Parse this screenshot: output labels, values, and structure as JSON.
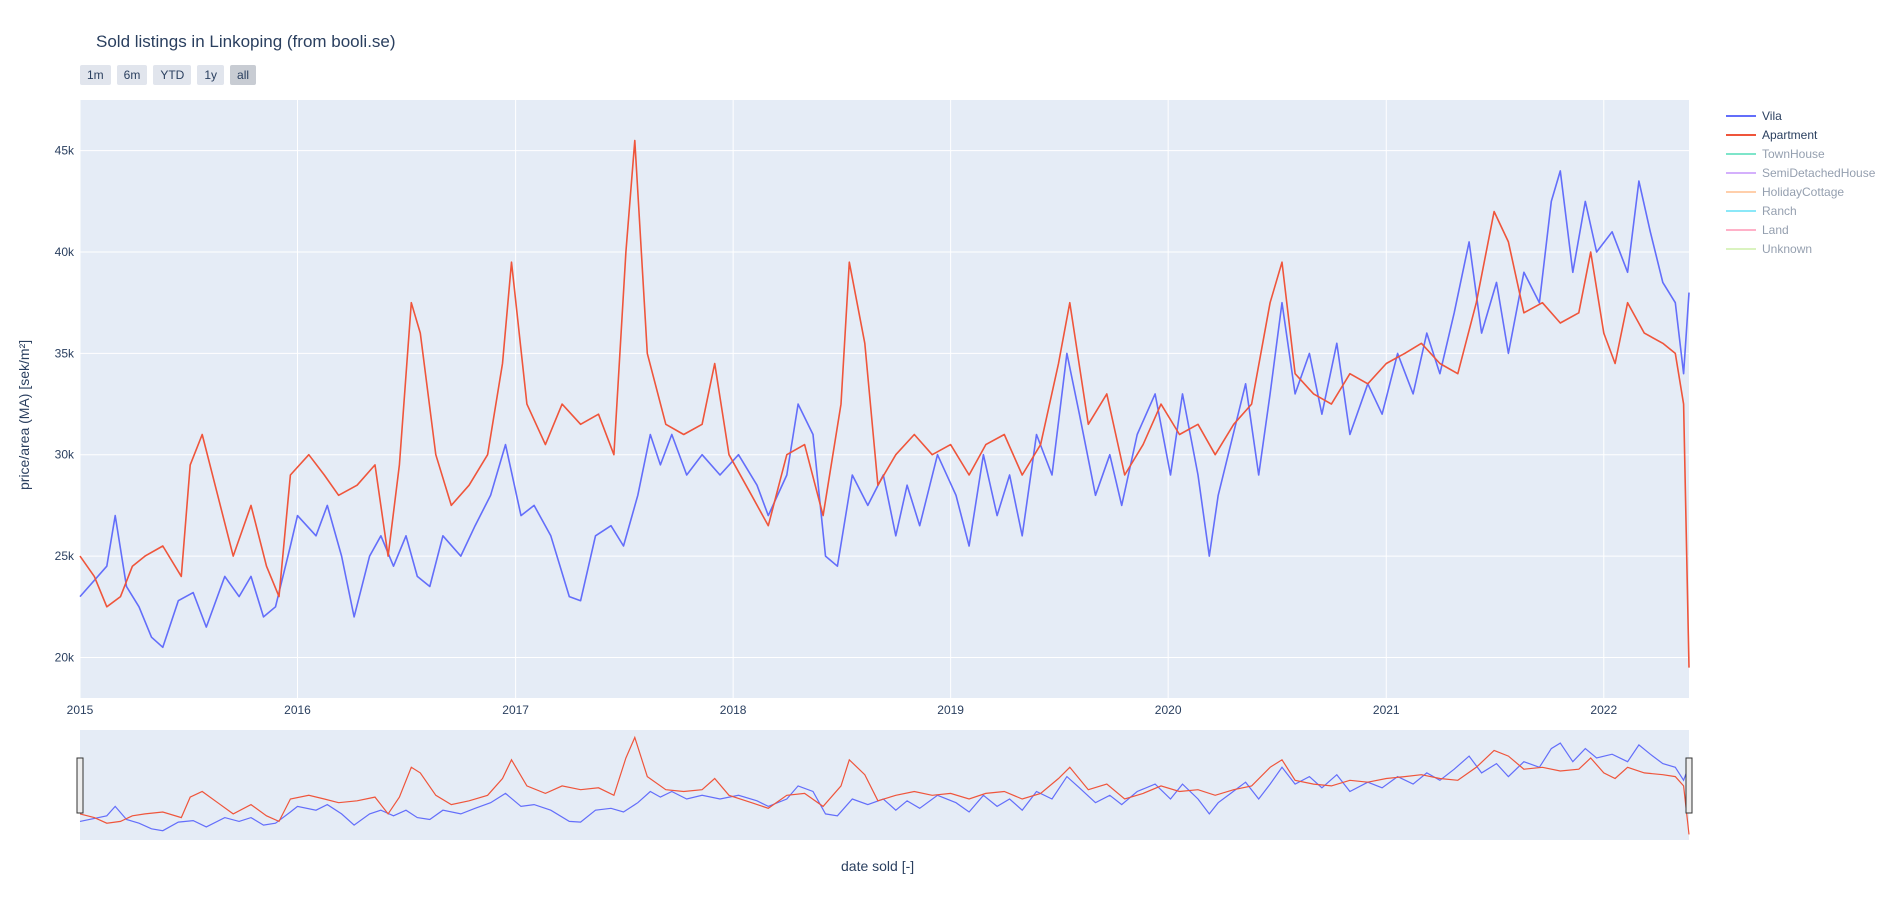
{
  "title": "Sold listings in Linkoping (from booli.se)",
  "range_selector": [
    {
      "label": "1m",
      "active": false
    },
    {
      "label": "6m",
      "active": false
    },
    {
      "label": "YTD",
      "active": false
    },
    {
      "label": "1y",
      "active": false
    },
    {
      "label": "all",
      "active": true
    }
  ],
  "colors": {
    "plot_bg": "#e5ecf6",
    "grid": "#ffffff",
    "text": "#2a3f5f"
  },
  "chart_data": {
    "type": "line",
    "title": "Sold listings in Linkoping (from booli.se)",
    "xlabel": "date sold [-]",
    "ylabel": "price/area (MA) [sek/m²]",
    "x_type": "date",
    "xlim": [
      "2015-01-01",
      "2022-05-24"
    ],
    "ylim": [
      18000,
      47500
    ],
    "x_ticks": [
      "2015",
      "2016",
      "2017",
      "2018",
      "2019",
      "2020",
      "2021",
      "2022"
    ],
    "y_ticks": [
      {
        "value": 20000,
        "label": "20k"
      },
      {
        "value": 25000,
        "label": "25k"
      },
      {
        "value": 30000,
        "label": "30k"
      },
      {
        "value": 35000,
        "label": "35k"
      },
      {
        "value": 40000,
        "label": "40k"
      },
      {
        "value": 45000,
        "label": "45k"
      }
    ],
    "grid": true,
    "legend_position": "right",
    "rangeslider": true,
    "series": [
      {
        "name": "Vila",
        "color": "#636efa",
        "visible": true,
        "points": [
          [
            "2015-01-01",
            23000
          ],
          [
            "2015-02-15",
            24500
          ],
          [
            "2015-03-01",
            27000
          ],
          [
            "2015-03-20",
            23500
          ],
          [
            "2015-04-10",
            22500
          ],
          [
            "2015-05-01",
            21000
          ],
          [
            "2015-05-20",
            20500
          ],
          [
            "2015-06-15",
            22800
          ],
          [
            "2015-07-10",
            23200
          ],
          [
            "2015-08-01",
            21500
          ],
          [
            "2015-09-01",
            24000
          ],
          [
            "2015-09-25",
            23000
          ],
          [
            "2015-10-15",
            24000
          ],
          [
            "2015-11-05",
            22000
          ],
          [
            "2015-11-25",
            22500
          ],
          [
            "2015-12-20",
            25500
          ],
          [
            "2016-01-01",
            27000
          ],
          [
            "2016-02-01",
            26000
          ],
          [
            "2016-02-20",
            27500
          ],
          [
            "2016-03-15",
            25000
          ],
          [
            "2016-04-05",
            22000
          ],
          [
            "2016-05-01",
            25000
          ],
          [
            "2016-05-20",
            26000
          ],
          [
            "2016-06-10",
            24500
          ],
          [
            "2016-07-01",
            26000
          ],
          [
            "2016-07-20",
            24000
          ],
          [
            "2016-08-10",
            23500
          ],
          [
            "2016-09-01",
            26000
          ],
          [
            "2016-10-01",
            25000
          ],
          [
            "2016-10-25",
            26500
          ],
          [
            "2016-11-20",
            28000
          ],
          [
            "2016-12-15",
            30500
          ],
          [
            "2017-01-10",
            27000
          ],
          [
            "2017-02-01",
            27500
          ],
          [
            "2017-03-01",
            26000
          ],
          [
            "2017-04-01",
            23000
          ],
          [
            "2017-04-20",
            22800
          ],
          [
            "2017-05-15",
            26000
          ],
          [
            "2017-06-10",
            26500
          ],
          [
            "2017-07-01",
            25500
          ],
          [
            "2017-07-25",
            28000
          ],
          [
            "2017-08-15",
            31000
          ],
          [
            "2017-09-01",
            29500
          ],
          [
            "2017-09-20",
            31000
          ],
          [
            "2017-10-15",
            29000
          ],
          [
            "2017-11-10",
            30000
          ],
          [
            "2017-12-10",
            29000
          ],
          [
            "2018-01-10",
            30000
          ],
          [
            "2018-02-10",
            28500
          ],
          [
            "2018-03-01",
            27000
          ],
          [
            "2018-04-01",
            29000
          ],
          [
            "2018-04-20",
            32500
          ],
          [
            "2018-05-15",
            31000
          ],
          [
            "2018-06-05",
            25000
          ],
          [
            "2018-06-25",
            24500
          ],
          [
            "2018-07-20",
            29000
          ],
          [
            "2018-08-15",
            27500
          ],
          [
            "2018-09-10",
            29000
          ],
          [
            "2018-10-01",
            26000
          ],
          [
            "2018-10-20",
            28500
          ],
          [
            "2018-11-10",
            26500
          ],
          [
            "2018-12-10",
            30000
          ],
          [
            "2019-01-10",
            28000
          ],
          [
            "2019-02-01",
            25500
          ],
          [
            "2019-02-25",
            30000
          ],
          [
            "2019-03-20",
            27000
          ],
          [
            "2019-04-10",
            29000
          ],
          [
            "2019-05-01",
            26000
          ],
          [
            "2019-05-25",
            31000
          ],
          [
            "2019-06-20",
            29000
          ],
          [
            "2019-07-15",
            35000
          ],
          [
            "2019-08-05",
            32000
          ],
          [
            "2019-09-01",
            28000
          ],
          [
            "2019-09-25",
            30000
          ],
          [
            "2019-10-15",
            27500
          ],
          [
            "2019-11-10",
            31000
          ],
          [
            "2019-12-10",
            33000
          ],
          [
            "2020-01-05",
            29000
          ],
          [
            "2020-01-25",
            33000
          ],
          [
            "2020-02-20",
            29000
          ],
          [
            "2020-03-10",
            25000
          ],
          [
            "2020-03-25",
            28000
          ],
          [
            "2020-04-15",
            30500
          ],
          [
            "2020-05-10",
            33500
          ],
          [
            "2020-06-01",
            29000
          ],
          [
            "2020-06-20",
            33000
          ],
          [
            "2020-07-10",
            37500
          ],
          [
            "2020-08-01",
            33000
          ],
          [
            "2020-08-25",
            35000
          ],
          [
            "2020-09-15",
            32000
          ],
          [
            "2020-10-10",
            35500
          ],
          [
            "2020-11-01",
            31000
          ],
          [
            "2020-12-01",
            33500
          ],
          [
            "2020-12-25",
            32000
          ],
          [
            "2021-01-20",
            35000
          ],
          [
            "2021-02-15",
            33000
          ],
          [
            "2021-03-10",
            36000
          ],
          [
            "2021-04-01",
            34000
          ],
          [
            "2021-04-25",
            37000
          ],
          [
            "2021-05-20",
            40500
          ],
          [
            "2021-06-10",
            36000
          ],
          [
            "2021-07-05",
            38500
          ],
          [
            "2021-07-25",
            35000
          ],
          [
            "2021-08-20",
            39000
          ],
          [
            "2021-09-15",
            37500
          ],
          [
            "2021-10-05",
            42500
          ],
          [
            "2021-10-20",
            44000
          ],
          [
            "2021-11-10",
            39000
          ],
          [
            "2021-12-01",
            42500
          ],
          [
            "2021-12-20",
            40000
          ],
          [
            "2022-01-15",
            41000
          ],
          [
            "2022-02-10",
            39000
          ],
          [
            "2022-03-01",
            43500
          ],
          [
            "2022-03-20",
            41000
          ],
          [
            "2022-04-10",
            38500
          ],
          [
            "2022-05-01",
            37500
          ],
          [
            "2022-05-15",
            34000
          ],
          [
            "2022-05-24",
            38000
          ]
        ]
      },
      {
        "name": "Apartment",
        "color": "#ef553b",
        "visible": true,
        "points": [
          [
            "2015-01-01",
            25000
          ],
          [
            "2015-01-25",
            24000
          ],
          [
            "2015-02-15",
            22500
          ],
          [
            "2015-03-10",
            23000
          ],
          [
            "2015-03-30",
            24500
          ],
          [
            "2015-04-20",
            25000
          ],
          [
            "2015-05-20",
            25500
          ],
          [
            "2015-06-20",
            24000
          ],
          [
            "2015-07-05",
            29500
          ],
          [
            "2015-07-25",
            31000
          ],
          [
            "2015-08-20",
            28000
          ],
          [
            "2015-09-15",
            25000
          ],
          [
            "2015-10-15",
            27500
          ],
          [
            "2015-11-10",
            24500
          ],
          [
            "2015-12-01",
            23000
          ],
          [
            "2015-12-20",
            29000
          ],
          [
            "2016-01-20",
            30000
          ],
          [
            "2016-02-15",
            29000
          ],
          [
            "2016-03-10",
            28000
          ],
          [
            "2016-04-10",
            28500
          ],
          [
            "2016-05-10",
            29500
          ],
          [
            "2016-06-01",
            25000
          ],
          [
            "2016-06-20",
            29500
          ],
          [
            "2016-07-10",
            37500
          ],
          [
            "2016-07-25",
            36000
          ],
          [
            "2016-08-20",
            30000
          ],
          [
            "2016-09-15",
            27500
          ],
          [
            "2016-10-15",
            28500
          ],
          [
            "2016-11-15",
            30000
          ],
          [
            "2016-12-10",
            34500
          ],
          [
            "2016-12-25",
            39500
          ],
          [
            "2017-01-20",
            32500
          ],
          [
            "2017-02-20",
            30500
          ],
          [
            "2017-03-20",
            32500
          ],
          [
            "2017-04-20",
            31500
          ],
          [
            "2017-05-20",
            32000
          ],
          [
            "2017-06-15",
            30000
          ],
          [
            "2017-07-05",
            40000
          ],
          [
            "2017-07-20",
            45500
          ],
          [
            "2017-08-10",
            35000
          ],
          [
            "2017-09-10",
            31500
          ],
          [
            "2017-10-10",
            31000
          ],
          [
            "2017-11-10",
            31500
          ],
          [
            "2017-12-01",
            34500
          ],
          [
            "2017-12-25",
            30000
          ],
          [
            "2018-02-01",
            28000
          ],
          [
            "2018-03-01",
            26500
          ],
          [
            "2018-04-01",
            30000
          ],
          [
            "2018-05-01",
            30500
          ],
          [
            "2018-06-01",
            27000
          ],
          [
            "2018-07-01",
            32500
          ],
          [
            "2018-07-15",
            39500
          ],
          [
            "2018-08-10",
            35500
          ],
          [
            "2018-09-01",
            28500
          ],
          [
            "2018-10-01",
            30000
          ],
          [
            "2018-11-01",
            31000
          ],
          [
            "2018-12-01",
            30000
          ],
          [
            "2019-01-01",
            30500
          ],
          [
            "2019-02-01",
            29000
          ],
          [
            "2019-03-01",
            30500
          ],
          [
            "2019-04-01",
            31000
          ],
          [
            "2019-05-01",
            29000
          ],
          [
            "2019-06-01",
            30500
          ],
          [
            "2019-07-01",
            34500
          ],
          [
            "2019-07-20",
            37500
          ],
          [
            "2019-08-20",
            31500
          ],
          [
            "2019-09-20",
            33000
          ],
          [
            "2019-10-20",
            29000
          ],
          [
            "2019-11-20",
            30500
          ],
          [
            "2019-12-20",
            32500
          ],
          [
            "2020-01-20",
            31000
          ],
          [
            "2020-02-20",
            31500
          ],
          [
            "2020-03-20",
            30000
          ],
          [
            "2020-04-20",
            31500
          ],
          [
            "2020-05-20",
            32500
          ],
          [
            "2020-06-20",
            37500
          ],
          [
            "2020-07-10",
            39500
          ],
          [
            "2020-08-01",
            34000
          ],
          [
            "2020-09-01",
            33000
          ],
          [
            "2020-10-01",
            32500
          ],
          [
            "2020-11-01",
            34000
          ],
          [
            "2020-12-01",
            33500
          ],
          [
            "2021-01-01",
            34500
          ],
          [
            "2021-02-01",
            35000
          ],
          [
            "2021-03-01",
            35500
          ],
          [
            "2021-04-01",
            34500
          ],
          [
            "2021-05-01",
            34000
          ],
          [
            "2021-06-01",
            37500
          ],
          [
            "2021-07-01",
            42000
          ],
          [
            "2021-07-25",
            40500
          ],
          [
            "2021-08-20",
            37000
          ],
          [
            "2021-09-20",
            37500
          ],
          [
            "2021-10-20",
            36500
          ],
          [
            "2021-11-20",
            37000
          ],
          [
            "2021-12-10",
            40000
          ],
          [
            "2022-01-01",
            36000
          ],
          [
            "2022-01-20",
            34500
          ],
          [
            "2022-02-10",
            37500
          ],
          [
            "2022-03-10",
            36000
          ],
          [
            "2022-04-10",
            35500
          ],
          [
            "2022-05-01",
            35000
          ],
          [
            "2022-05-15",
            32500
          ],
          [
            "2022-05-24",
            19500
          ]
        ]
      },
      {
        "name": "TownHouse",
        "color": "#00cc96",
        "visible": false,
        "points": []
      },
      {
        "name": "SemiDetachedHouse",
        "color": "#ab63fa",
        "visible": false,
        "points": []
      },
      {
        "name": "HolidayCottage",
        "color": "#ffa15a",
        "visible": false,
        "points": []
      },
      {
        "name": "Ranch",
        "color": "#19d3f3",
        "visible": false,
        "points": []
      },
      {
        "name": "Land",
        "color": "#ff6692",
        "visible": false,
        "points": []
      },
      {
        "name": "Unknown",
        "color": "#b6e880",
        "visible": false,
        "points": []
      }
    ]
  }
}
